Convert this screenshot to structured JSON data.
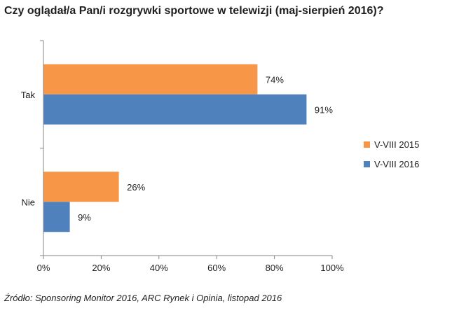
{
  "title": "Czy oglądał/a Pan/i rozgrywki sportowe w telewizji (maj-sierpień 2016)?",
  "source": "Źródło: Sponsoring Monitor 2016, ARC Rynek i Opinia, listopad 2016",
  "colors": {
    "V-VIII 2015": "#F79646",
    "V-VIII 2016": "#4F81BD"
  },
  "chart_data": {
    "type": "bar",
    "orientation": "horizontal",
    "categories": [
      "Tak",
      "Nie"
    ],
    "series": [
      {
        "name": "V-VIII 2015",
        "values": [
          74,
          26
        ],
        "labels": [
          "74%",
          "26%"
        ]
      },
      {
        "name": "V-VIII 2016",
        "values": [
          91,
          9
        ],
        "labels": [
          "91%",
          "9%"
        ]
      }
    ],
    "xlim": [
      0,
      100
    ],
    "xticks": [
      "0%",
      "20%",
      "40%",
      "60%",
      "80%",
      "100%"
    ],
    "legend": "right",
    "grid": false
  }
}
